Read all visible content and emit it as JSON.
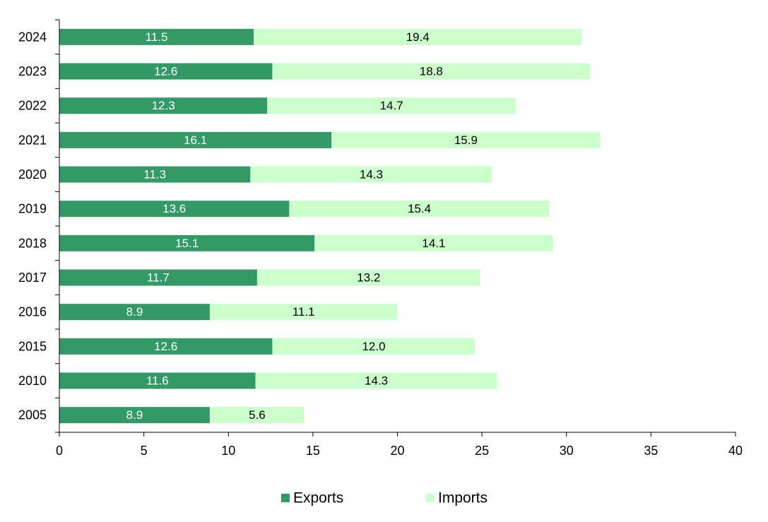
{
  "chart_data": {
    "type": "bar",
    "orientation": "horizontal",
    "stacked": true,
    "categories": [
      "2024",
      "2023",
      "2022",
      "2021",
      "2020",
      "2019",
      "2018",
      "2017",
      "2016",
      "2015",
      "2010",
      "2005"
    ],
    "series": [
      {
        "name": "Exports",
        "color": "#339966",
        "label_color": "#ffffff",
        "values": [
          11.5,
          12.6,
          12.3,
          16.1,
          11.3,
          13.6,
          15.1,
          11.7,
          8.9,
          12.6,
          11.6,
          8.9
        ],
        "labels": [
          "11.5",
          "12.6",
          "12.3",
          "16.1",
          "11.3",
          "13.6",
          "15.1",
          "11.7",
          "8.9",
          "12.6",
          "11.6",
          "8.9"
        ]
      },
      {
        "name": "Imports",
        "color": "#ccffcc",
        "label_color": "#000000",
        "values": [
          19.4,
          18.8,
          14.7,
          15.9,
          14.3,
          15.4,
          14.1,
          13.2,
          11.1,
          12.0,
          14.3,
          5.6
        ],
        "labels": [
          "19.4",
          "18.8",
          "14.7",
          "15.9",
          "14.3",
          "15.4",
          "14.1",
          "13.2",
          "11.1",
          "12.0",
          "14.3",
          "5.6"
        ]
      }
    ],
    "xlim": [
      0,
      40
    ],
    "x_ticks": [
      "0",
      "5",
      "10",
      "15",
      "20",
      "25",
      "30",
      "35",
      "40"
    ],
    "title": "",
    "xlabel": "",
    "ylabel": "",
    "grid": false,
    "legend_position": "bottom"
  }
}
